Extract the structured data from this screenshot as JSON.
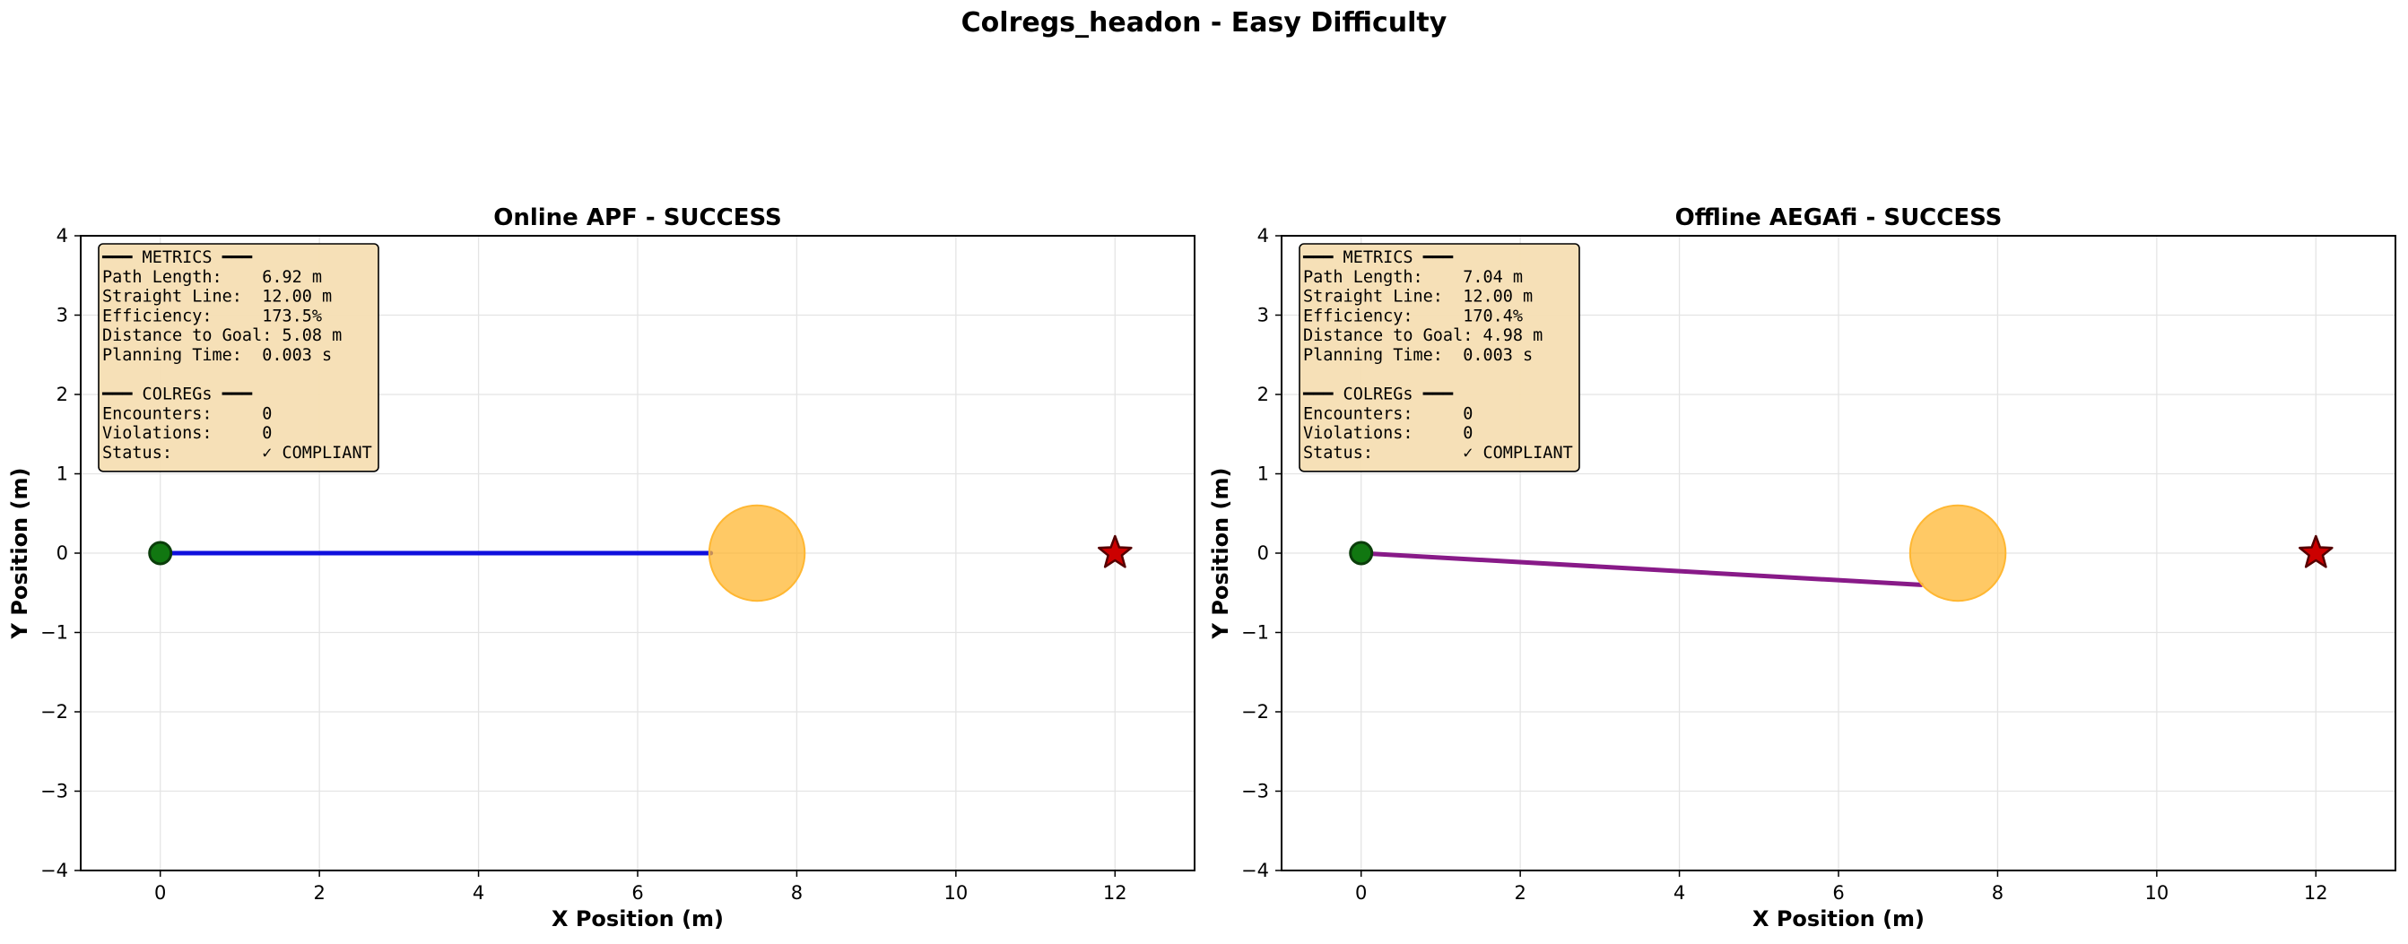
{
  "figure": {
    "title": "Colregs_headon - Easy Difficulty"
  },
  "chart_data": [
    {
      "type": "line",
      "title": "Online APF - SUCCESS",
      "xlabel": "X Position (m)",
      "ylabel": "Y Position (m)",
      "xlim": [
        -1,
        13
      ],
      "ylim": [
        -4,
        4
      ],
      "xticks": [
        0,
        2,
        4,
        6,
        8,
        10,
        12
      ],
      "yticks": [
        -4,
        -3,
        -2,
        -1,
        0,
        1,
        2,
        3,
        4
      ],
      "grid": true,
      "path": {
        "color": "#1010dd",
        "x": [
          0,
          6.92
        ],
        "y": [
          0,
          0
        ]
      },
      "start": {
        "x": 0,
        "y": 0,
        "color": "#117711"
      },
      "goal": {
        "x": 12,
        "y": 0,
        "color": "#cc0000"
      },
      "obstacle": {
        "x": 7.5,
        "y": 0,
        "radius": 0.6,
        "color": "#ffb732"
      },
      "metrics_box": {
        "lines": [
          "━━━ METRICS ━━━",
          "Path Length:    6.92 m",
          "Straight Line:  12.00 m",
          "Efficiency:     173.5%",
          "Distance to Goal: 5.08 m",
          "Planning Time:  0.003 s",
          "",
          "━━━ COLREGs ━━━",
          "Encounters:     0",
          "Violations:     0",
          "Status:         ✓ COMPLIANT"
        ]
      }
    },
    {
      "type": "line",
      "title": "Offline AEGAfi - SUCCESS",
      "xlabel": "X Position (m)",
      "ylabel": "Y Position (m)",
      "xlim": [
        -1,
        13
      ],
      "ylim": [
        -4,
        4
      ],
      "xticks": [
        0,
        2,
        4,
        6,
        8,
        10,
        12
      ],
      "yticks": [
        -4,
        -3,
        -2,
        -1,
        0,
        1,
        2,
        3,
        4
      ],
      "grid": true,
      "path": {
        "color": "#881a88",
        "x": [
          0,
          7.04
        ],
        "y": [
          0,
          -0.4
        ]
      },
      "start": {
        "x": 0,
        "y": 0,
        "color": "#117711"
      },
      "goal": {
        "x": 12,
        "y": 0,
        "color": "#cc0000"
      },
      "obstacle": {
        "x": 7.5,
        "y": 0,
        "radius": 0.6,
        "color": "#ffb732"
      },
      "metrics_box": {
        "lines": [
          "━━━ METRICS ━━━",
          "Path Length:    7.04 m",
          "Straight Line:  12.00 m",
          "Efficiency:     170.4%",
          "Distance to Goal: 4.98 m",
          "Planning Time:  0.003 s",
          "",
          "━━━ COLREGs ━━━",
          "Encounters:     0",
          "Violations:     0",
          "Status:         ✓ COMPLIANT"
        ]
      }
    }
  ]
}
